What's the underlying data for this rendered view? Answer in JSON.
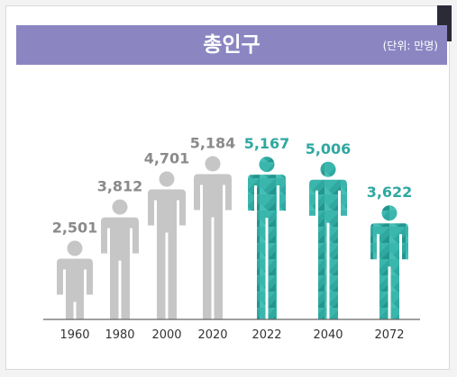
{
  "chart_data": {
    "type": "bar",
    "title": "총인구",
    "unit": "(단위: 만명)",
    "categories": [
      "1960",
      "1980",
      "2000",
      "2020",
      "2022",
      "2040",
      "2072"
    ],
    "values": [
      2501,
      3812,
      4701,
      5184,
      5167,
      5006,
      3622
    ],
    "value_labels": [
      "2,501",
      "3,812",
      "4,701",
      "5,184",
      "5,167",
      "5,006",
      "3,622"
    ],
    "series_styles": [
      "past",
      "past",
      "past",
      "past",
      "projection",
      "projection",
      "projection"
    ],
    "ylim": [
      0,
      5200
    ],
    "grid": false,
    "colors": {
      "past": "#c6c6c6",
      "past_label": "#8a8a8a",
      "projection": "#2fa8a0",
      "projection_label": "#2fa8a0",
      "banner": "#8b86c2"
    }
  }
}
